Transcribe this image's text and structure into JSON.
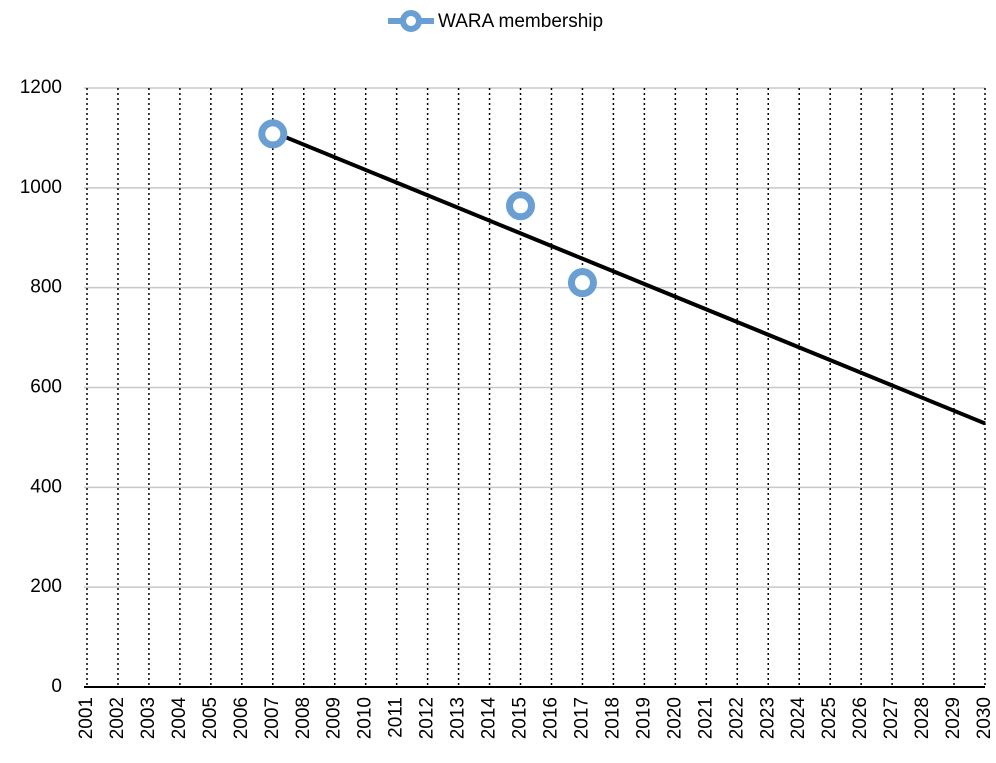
{
  "chart_data": {
    "type": "scatter",
    "series": [
      {
        "name": "WARA membership",
        "color": "#6a9fd4",
        "x": [
          2007,
          2015,
          2017
        ],
        "values": [
          1108,
          964,
          810
        ]
      }
    ],
    "trendline": {
      "color": "#000000",
      "x": [
        2007,
        2030
      ],
      "values": [
        1112,
        528
      ]
    },
    "xlim": [
      2001,
      2030
    ],
    "xticks": [
      2001,
      2002,
      2003,
      2004,
      2005,
      2006,
      2007,
      2008,
      2009,
      2010,
      2011,
      2012,
      2013,
      2014,
      2015,
      2016,
      2017,
      2018,
      2019,
      2020,
      2021,
      2022,
      2023,
      2024,
      2025,
      2026,
      2027,
      2028,
      2029,
      2030
    ],
    "ylim": [
      0,
      1200
    ],
    "yticks": [
      0,
      200,
      400,
      600,
      800,
      1000,
      1200
    ],
    "grid": true,
    "legend": "top"
  }
}
